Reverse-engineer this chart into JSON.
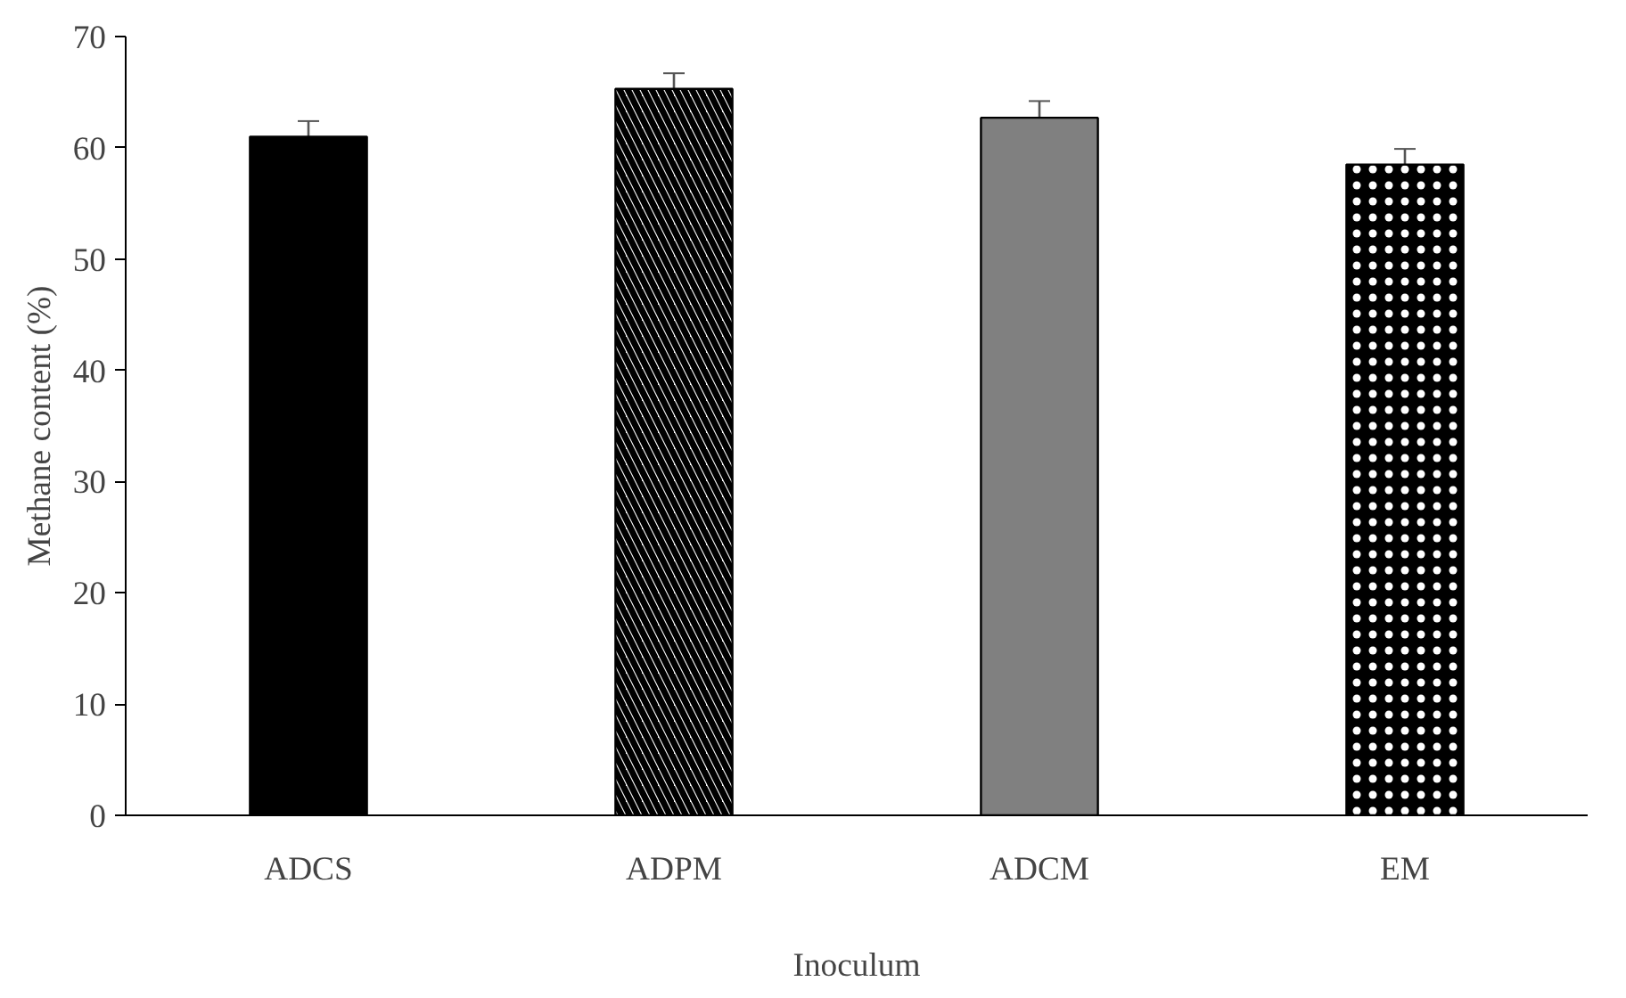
{
  "chart_data": {
    "type": "bar",
    "xlabel": "Inoculum",
    "ylabel": "Methane content (%)",
    "categories": [
      "ADCS",
      "ADPM",
      "ADCM",
      "EM"
    ],
    "values": [
      61.0,
      65.3,
      62.7,
      58.5
    ],
    "errors": [
      1.4,
      1.4,
      1.5,
      1.4
    ],
    "colors": [
      "#000000",
      "#ffffff",
      "#808080",
      "#000000"
    ],
    "ylim": [
      0,
      70
    ],
    "yticks": [
      0,
      10,
      20,
      30,
      40,
      50,
      60,
      70
    ],
    "grid": false
  }
}
